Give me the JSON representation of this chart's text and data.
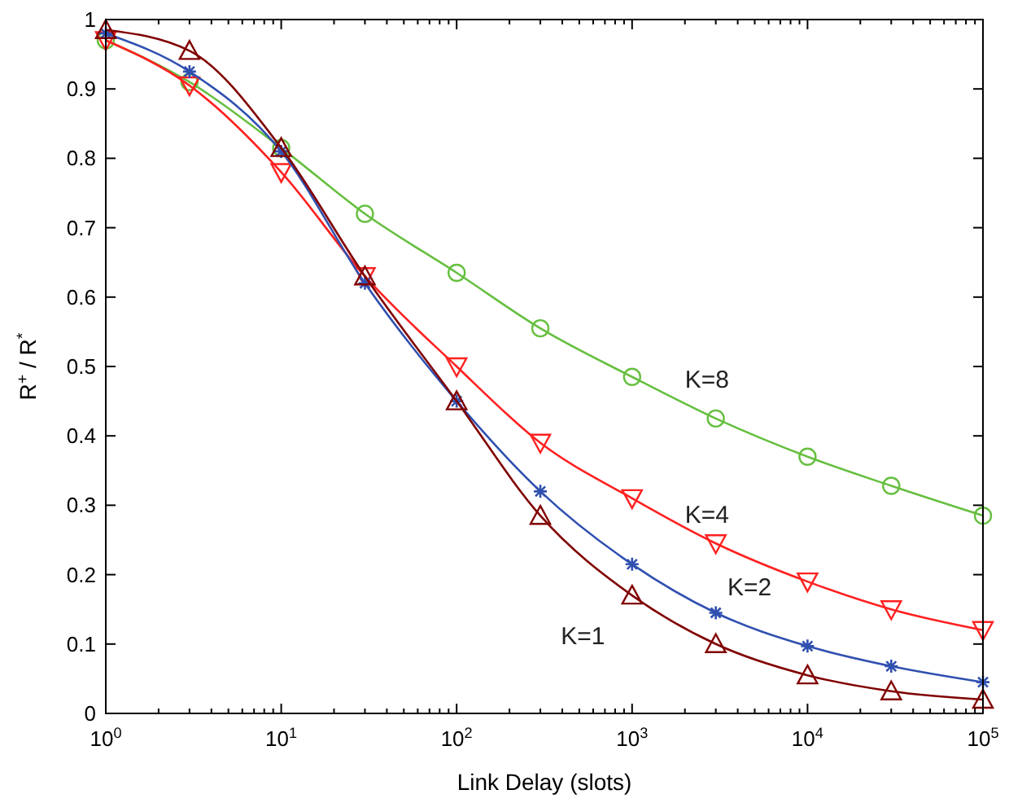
{
  "chart_data": {
    "type": "line",
    "xlabel": "Link Delay (slots)",
    "ylabel": "R$^{+}$ / R$^{*}$",
    "log": "x",
    "x": [
      1,
      3,
      10,
      30,
      100,
      300,
      1000,
      3000,
      10000,
      30000,
      100000
    ],
    "xlim": [
      1,
      100000
    ],
    "xticks": [
      {
        "value": 1,
        "label": "10$^{0}$"
      },
      {
        "value": 10,
        "label": "10$^{1}$"
      },
      {
        "value": 100,
        "label": "10$^{2}$"
      },
      {
        "value": 1000,
        "label": "10$^{3}$"
      },
      {
        "value": 10000,
        "label": "10$^{4}$"
      },
      {
        "value": 100000,
        "label": "10$^{5}$"
      }
    ],
    "ylim": [
      0,
      1
    ],
    "yticks": [
      0,
      0.1,
      0.2,
      0.3,
      0.4,
      0.5,
      0.6,
      0.7,
      0.8,
      0.9,
      1
    ],
    "grid": false,
    "line_style": "solid",
    "series": [
      {
        "name": "K=8",
        "color": "#66bf3f",
        "marker": "circle",
        "values": [
          0.97,
          0.91,
          0.815,
          0.72,
          0.635,
          0.555,
          0.485,
          0.425,
          0.37,
          0.328,
          0.285
        ]
      },
      {
        "name": "K=4",
        "color": "#ff2020",
        "marker": "triangle-down",
        "values": [
          0.97,
          0.905,
          0.78,
          0.63,
          0.5,
          0.39,
          0.31,
          0.245,
          0.19,
          0.15,
          0.12
        ]
      },
      {
        "name": "K=2",
        "color": "#3050b0",
        "marker": "cross",
        "values": [
          0.98,
          0.925,
          0.81,
          0.62,
          0.45,
          0.32,
          0.215,
          0.145,
          0.097,
          0.068,
          0.045
        ]
      },
      {
        "name": "K=1",
        "color": "#800000",
        "marker": "triangle",
        "values": [
          0.985,
          0.955,
          0.815,
          0.63,
          0.45,
          0.285,
          0.17,
          0.1,
          0.055,
          0.032,
          0.02
        ]
      }
    ]
  }
}
